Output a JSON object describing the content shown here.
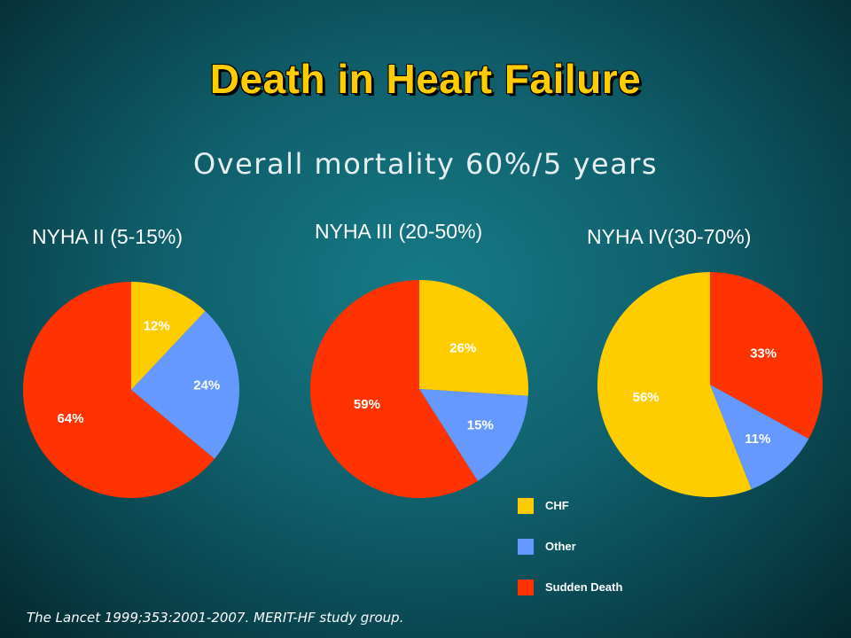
{
  "title": "Death in Heart Failure",
  "subtitle": "Overall mortality 60%/5 years",
  "citation": "The Lancet 1999;353:2001-2007. MERIT-HF study group.",
  "colors": {
    "CHF": "#ffcc00",
    "Other": "#6699ff",
    "Sudden Death": "#ff3300"
  },
  "legend": [
    {
      "label": "CHF",
      "color": "#ffcc00"
    },
    {
      "label": "Other",
      "color": "#6699ff"
    },
    {
      "label": "Sudden Death",
      "color": "#ff3300"
    }
  ],
  "chart_data": [
    {
      "type": "pie",
      "title": "NYHA II (5-15%)",
      "slices": [
        {
          "category": "CHF",
          "value": 12,
          "label": "12%"
        },
        {
          "category": "Other",
          "value": 24,
          "label": "24%"
        },
        {
          "category": "Sudden Death",
          "value": 64,
          "label": "64%"
        }
      ]
    },
    {
      "type": "pie",
      "title": "NYHA III (20-50%)",
      "slices": [
        {
          "category": "CHF",
          "value": 26,
          "label": "26%"
        },
        {
          "category": "Other",
          "value": 15,
          "label": "15%"
        },
        {
          "category": "Sudden Death",
          "value": 59,
          "label": "59%"
        }
      ]
    },
    {
      "type": "pie",
      "title": "NYHA IV(30-70%)",
      "slices": [
        {
          "category": "CHF",
          "value": 56,
          "label": "56%"
        },
        {
          "category": "Other",
          "value": 11,
          "label": "11%"
        },
        {
          "category": "Sudden Death",
          "value": 33,
          "label": "33%"
        }
      ]
    }
  ]
}
